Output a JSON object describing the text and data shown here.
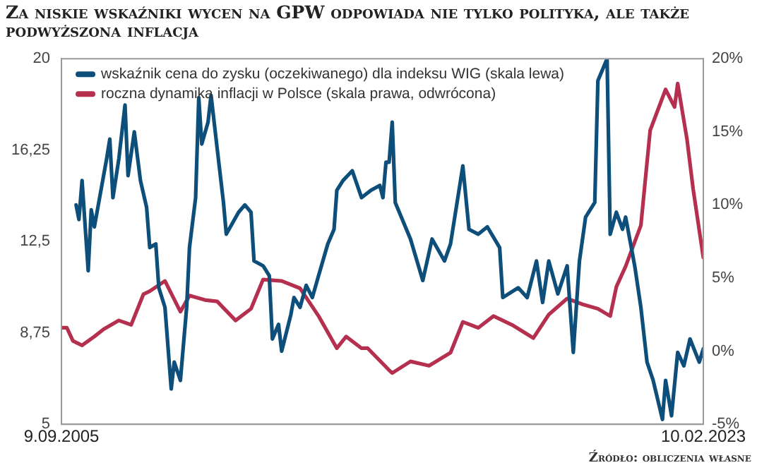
{
  "chart_data": {
    "type": "line",
    "title": "Za niskie wskaźniki wycen na GPW odpowiada nie tylko polityka, ale także podwyższona inflacja",
    "annotations": [
      "Źródło: obliczenia własne"
    ],
    "legend": "top left",
    "xlim": [
      "2005-09-09",
      "2023-02-10"
    ],
    "xticks": [
      {
        "value": "2005-09-09",
        "label": "9.09.2005"
      },
      {
        "value": "2023-02-10",
        "label": "10.02.2023"
      }
    ],
    "ylim": [
      5,
      20
    ],
    "yticks": [
      5,
      {
        "value": 8.75,
        "label": "8,75"
      },
      {
        "value": 12.5,
        "label": "12,5"
      },
      {
        "value": 16.25,
        "label": "16,25"
      },
      20
    ],
    "y2lim": [
      -5,
      20
    ],
    "y2ticks": [
      {
        "value": -5,
        "label": "-5%"
      },
      {
        "value": 0,
        "label": "0%"
      },
      {
        "value": 5,
        "label": "5%"
      },
      {
        "value": 10,
        "label": "10%"
      },
      {
        "value": 15,
        "label": "15%"
      },
      {
        "value": 20,
        "label": "20%"
      }
    ],
    "series": [
      {
        "name": "wskaźnik cena do zysku (oczekiwanego) dla indeksu WIG (skala lewa)",
        "color": "#0d4f7a",
        "x": [
          "2006-02",
          "2006-03",
          "2006-04",
          "2006-06",
          "2006-07",
          "2006-08",
          "2006-10",
          "2006-12",
          "2007-01",
          "2007-02",
          "2007-04",
          "2007-06",
          "2007-07",
          "2007-09",
          "2007-11",
          "2008-01",
          "2008-02",
          "2008-04",
          "2008-05",
          "2008-07",
          "2008-09",
          "2008-10",
          "2008-12",
          "2009-02",
          "2009-03",
          "2009-05",
          "2009-06",
          "2009-07",
          "2009-09",
          "2009-10",
          "2009-12",
          "2010-02",
          "2010-03",
          "2010-07",
          "2010-09",
          "2010-11",
          "2010-12",
          "2011-03",
          "2011-05",
          "2011-06",
          "2011-08",
          "2011-09",
          "2011-12",
          "2012-01",
          "2012-03",
          "2012-05",
          "2012-07",
          "2012-09",
          "2012-12",
          "2013-02",
          "2013-03",
          "2013-05",
          "2013-08",
          "2013-11",
          "2014-02",
          "2014-05",
          "2014-06",
          "2014-07",
          "2014-08",
          "2014-09",
          "2014-10",
          "2015-03",
          "2015-07",
          "2015-10",
          "2016-02",
          "2016-04",
          "2016-08",
          "2016-10",
          "2017-01",
          "2017-04",
          "2017-08",
          "2017-09",
          "2018-02",
          "2018-05",
          "2018-08",
          "2018-10",
          "2018-12",
          "2019-03",
          "2019-06",
          "2019-08",
          "2019-10",
          "2019-12",
          "2020-03",
          "2020-04",
          "2020-06",
          "2020-07",
          "2020-08",
          "2020-10",
          "2020-12",
          "2021-01",
          "2021-04",
          "2021-06",
          "2021-08",
          "2021-10",
          "2022-01",
          "2022-02",
          "2022-04",
          "2022-06",
          "2022-08",
          "2022-10",
          "2023-01",
          "2023-02-10"
        ],
        "values": [
          14.0,
          13.4,
          15.0,
          11.3,
          13.8,
          13.1,
          14.5,
          15.9,
          16.7,
          14.3,
          15.9,
          18.1,
          15.2,
          17.0,
          15.0,
          13.9,
          12.25,
          12.4,
          10.6,
          9.8,
          6.45,
          7.55,
          6.8,
          9.8,
          12.25,
          14.3,
          18.4,
          16.5,
          17.4,
          18.5,
          16.3,
          14.1,
          12.8,
          13.7,
          14.0,
          13.7,
          11.7,
          11.5,
          11.1,
          8.5,
          9.1,
          8.0,
          9.5,
          10.2,
          9.8,
          10.7,
          10.2,
          11.1,
          12.4,
          13.0,
          14.6,
          15.0,
          15.4,
          14.3,
          14.6,
          14.8,
          14.3,
          15.75,
          15.75,
          17.4,
          14.1,
          12.6,
          10.9,
          12.6,
          11.7,
          12.4,
          15.6,
          13.0,
          12.8,
          13.1,
          12.25,
          10.2,
          10.6,
          10.2,
          11.7,
          10.0,
          11.7,
          10.35,
          11.5,
          7.95,
          11.7,
          13.5,
          14.1,
          19.1,
          19.7,
          20,
          12.8,
          13.7,
          13.0,
          13.5,
          11.5,
          9.8,
          7.55,
          6.8,
          5.2,
          6.8,
          5.35,
          7.95,
          7.4,
          8.5,
          7.55,
          8.1
        ]
      },
      {
        "name": "roczna dynamika inflacji w Polsce (skala prawa, odwrócona)",
        "color": "#b5304f",
        "axis": "y2",
        "x": [
          "2005-09-09",
          "2005-11",
          "2006-01",
          "2006-04",
          "2006-08",
          "2006-11",
          "2007-04",
          "2007-08",
          "2007-12",
          "2008-02",
          "2008-07",
          "2008-12",
          "2009-03",
          "2009-08",
          "2009-12",
          "2010-06",
          "2010-11",
          "2011-03",
          "2011-09",
          "2012-03",
          "2012-09",
          "2013-03",
          "2013-06",
          "2013-11",
          "2014-01",
          "2014-08",
          "2014-09",
          "2015-03",
          "2015-09",
          "2016-04",
          "2016-08",
          "2017-01",
          "2017-06",
          "2017-12",
          "2018-07",
          "2018-12",
          "2019-06",
          "2019-11",
          "2020-04",
          "2020-08",
          "2020-10",
          "2021-01",
          "2021-06",
          "2021-09",
          "2022-02",
          "2022-05",
          "2022-06",
          "2022-09",
          "2022-11",
          "2023-02-10"
        ],
        "values": [
          1.6,
          1.6,
          0.7,
          0.4,
          1.0,
          1.5,
          2.1,
          1.8,
          3.9,
          4.1,
          4.8,
          2.7,
          3.8,
          3.5,
          3.4,
          2.1,
          2.9,
          4.9,
          4.8,
          4.3,
          2.4,
          0.2,
          1.0,
          0.2,
          0.2,
          -1.3,
          -1.5,
          -0.7,
          -1.0,
          -0.1,
          2.0,
          1.6,
          2.4,
          1.8,
          0.9,
          2.5,
          3.6,
          3.2,
          2.9,
          2.4,
          4.4,
          5.8,
          8.6,
          15.1,
          17.9,
          16.7,
          18.3,
          14.5,
          11.1,
          6.4
        ]
      }
    ]
  }
}
